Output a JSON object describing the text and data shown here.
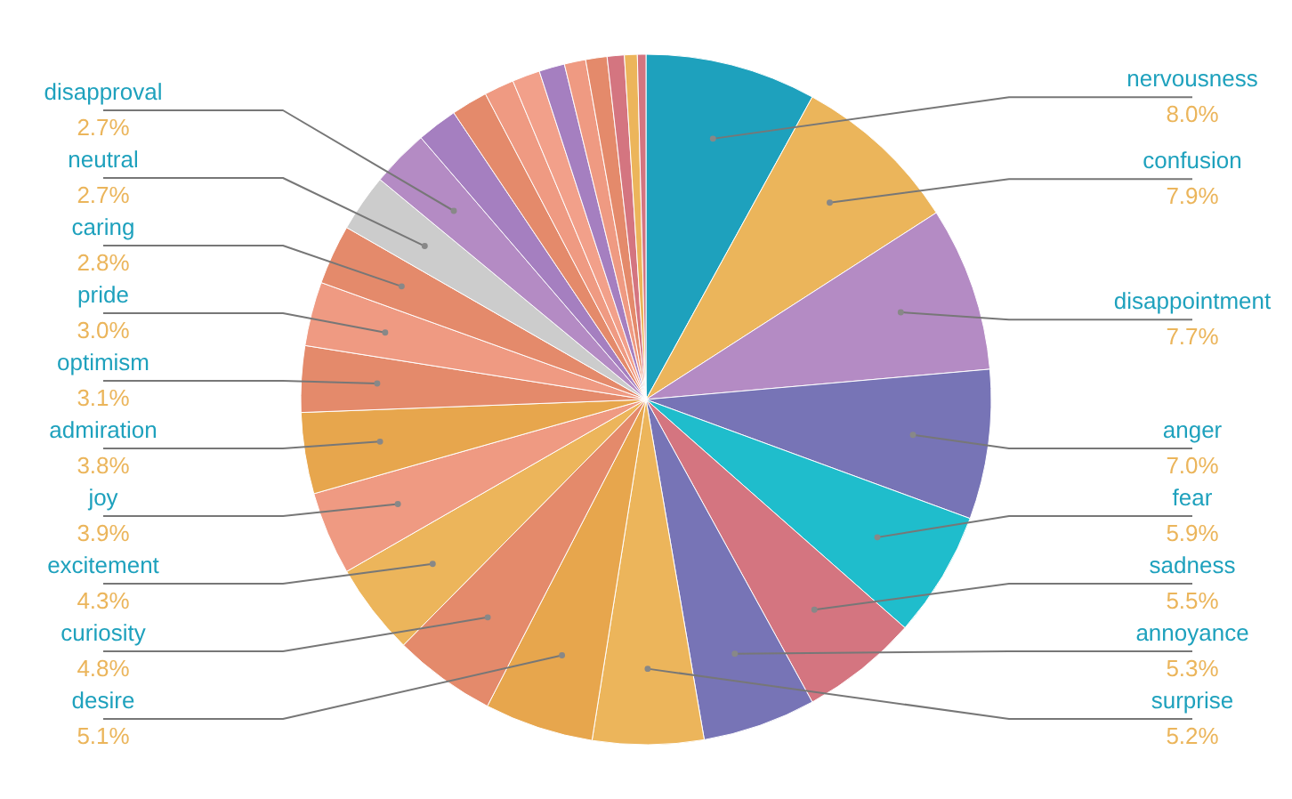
{
  "chart_data": {
    "type": "pie",
    "categories": [
      "nervousness",
      "confusion",
      "disappointment",
      "anger",
      "fear",
      "sadness",
      "annoyance",
      "surprise",
      "desire",
      "curiosity",
      "excitement",
      "joy",
      "admiration",
      "optimism",
      "pride",
      "caring",
      "neutral",
      "disapproval",
      null,
      null,
      null,
      null,
      null,
      null,
      null,
      null,
      null,
      null
    ],
    "values": [
      8.0,
      7.9,
      7.7,
      7.0,
      5.9,
      5.5,
      5.3,
      5.2,
      5.1,
      4.8,
      4.3,
      3.9,
      3.8,
      3.1,
      3.0,
      2.8,
      2.7,
      2.7,
      1.9,
      1.7,
      1.4,
      1.3,
      1.2,
      1.0,
      1.0,
      0.8,
      0.6,
      0.4
    ],
    "value_labels": [
      "8.0%",
      "7.9%",
      "7.7%",
      "7.0%",
      "5.9%",
      "5.5%",
      "5.3%",
      "5.2%",
      "5.1%",
      "4.8%",
      "4.3%",
      "3.9%",
      "3.8%",
      "3.1%",
      "3.0%",
      "2.8%",
      "2.7%",
      "2.7%",
      null,
      null,
      null,
      null,
      null,
      null,
      null,
      null,
      null,
      null
    ],
    "colors": [
      "#1ea1bd",
      "#ebb55b",
      "#b48bc4",
      "#7774b6",
      "#1fbdcc",
      "#d47580",
      "#7774b6",
      "#ecb55b",
      "#e7a64d",
      "#e48a6b",
      "#ecb55b",
      "#ef9a82",
      "#e7a64d",
      "#e48a6b",
      "#ef9a82",
      "#e48a6b",
      "#cccccc",
      "#b48bc4",
      "#a57fc0",
      "#e48a6b",
      "#ef9a82",
      "#f2a08a",
      "#a57fc0",
      "#ef9a82",
      "#e48a6b",
      "#d47580",
      "#ecb55b",
      "#d47580"
    ]
  }
}
